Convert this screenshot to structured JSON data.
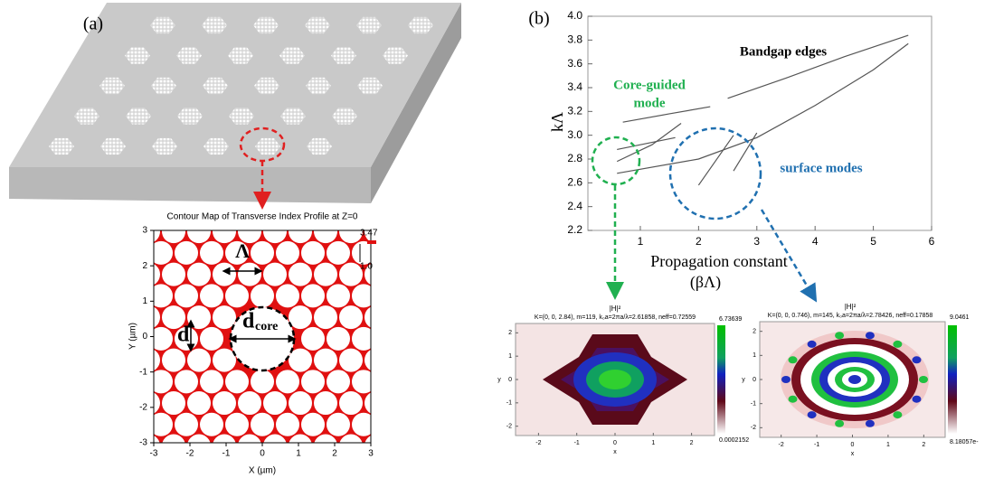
{
  "panel_a": {
    "label": "(a)",
    "contour_map": {
      "title": "Contour Map of Transverse Index Profile at Z=0",
      "x_label": "X (µm)",
      "y_label": "Y (µm)",
      "xlim": [
        -3,
        3
      ],
      "ylim": [
        -3,
        3
      ],
      "xticks": [
        -3,
        -2,
        -1,
        0,
        1,
        2,
        3
      ],
      "yticks": [
        -3,
        -2,
        -1,
        0,
        1,
        2,
        3
      ],
      "colorbar_labels": [
        "3.47",
        "1.0"
      ],
      "annotations": {
        "pitch": "Λ",
        "hole": "d",
        "core": "d",
        "core_sub": "core"
      }
    }
  },
  "panel_b": {
    "label": "(b)",
    "chart": {
      "type": "line",
      "y_label": "kΛ",
      "x_label": [
        "Propagation constant",
        "(βΛ)"
      ],
      "xlim": [
        0.1,
        6
      ],
      "ylim": [
        2.2,
        4
      ],
      "xticks": [
        1,
        2,
        3,
        4,
        5,
        6
      ],
      "yticks": [
        2.2,
        2.4,
        2.6,
        2.8,
        {
          "value": 3,
          "label": "3.0"
        },
        3.2,
        3.4,
        3.6,
        3.8,
        {
          "value": 4,
          "label": "4.0"
        }
      ],
      "series": [
        {
          "color": "#555555",
          "x": [
            0.7,
            1.5,
            2.2
          ],
          "y": [
            3.11,
            3.18,
            3.24
          ]
        },
        {
          "color": "#555555",
          "x": [
            2.5,
            3.5,
            4.5,
            5.6
          ],
          "y": [
            3.31,
            3.48,
            3.66,
            3.84
          ]
        },
        {
          "color": "#555555",
          "x": [
            0.6,
            2,
            3,
            4,
            5,
            5.6
          ],
          "y": [
            2.68,
            2.8,
            2.98,
            3.25,
            3.55,
            3.77
          ]
        },
        {
          "color": "#555555",
          "x": [
            0.6,
            1.2,
            1.7
          ],
          "y": [
            2.78,
            2.92,
            3.1
          ]
        },
        {
          "color": "#555555",
          "x": [
            0.6,
            1.6
          ],
          "y": [
            2.88,
            2.98
          ]
        },
        {
          "color": "#555555",
          "x": [
            2,
            2.6
          ],
          "y": [
            2.58,
            3
          ]
        },
        {
          "color": "#555555",
          "x": [
            2.6,
            3
          ],
          "y": [
            2.7,
            3.02
          ]
        }
      ],
      "annotations": {
        "bandgap": "Bandgap edges",
        "core_guided": [
          "Core-guided",
          "mode"
        ],
        "surface": "surface modes"
      }
    },
    "field_plots": [
      {
        "title": "|H|²",
        "header": "K=(0, 0, 2.84), m=119, k₀a=2πa/λ=2.61858, neff=0.72559",
        "colorbar_max": "6.73639",
        "colorbar_min": "0.0002152",
        "x_label": "x",
        "y_label": "y",
        "xlim": [
          -2.6,
          2.6
        ],
        "ylim": [
          -2.4,
          2.4
        ],
        "xticks": [
          -2,
          -1,
          0,
          1,
          2
        ],
        "yticks": [
          -2,
          -1,
          0,
          1,
          2
        ]
      },
      {
        "title": "|H|²",
        "header": "K=(0, 0, 0.746), m=145, k₀a=2πa/λ=2.78426, neff=0.17858",
        "colorbar_max": "9.0461",
        "colorbar_min": "8.18057e-",
        "x_label": "x",
        "y_label": "y",
        "xlim": [
          -2.6,
          2.6
        ],
        "ylim": [
          -2.4,
          2.4
        ],
        "xticks": [
          -2,
          -1,
          0,
          1,
          2
        ],
        "yticks": [
          -2,
          -1,
          0,
          1,
          2
        ]
      }
    ]
  }
}
